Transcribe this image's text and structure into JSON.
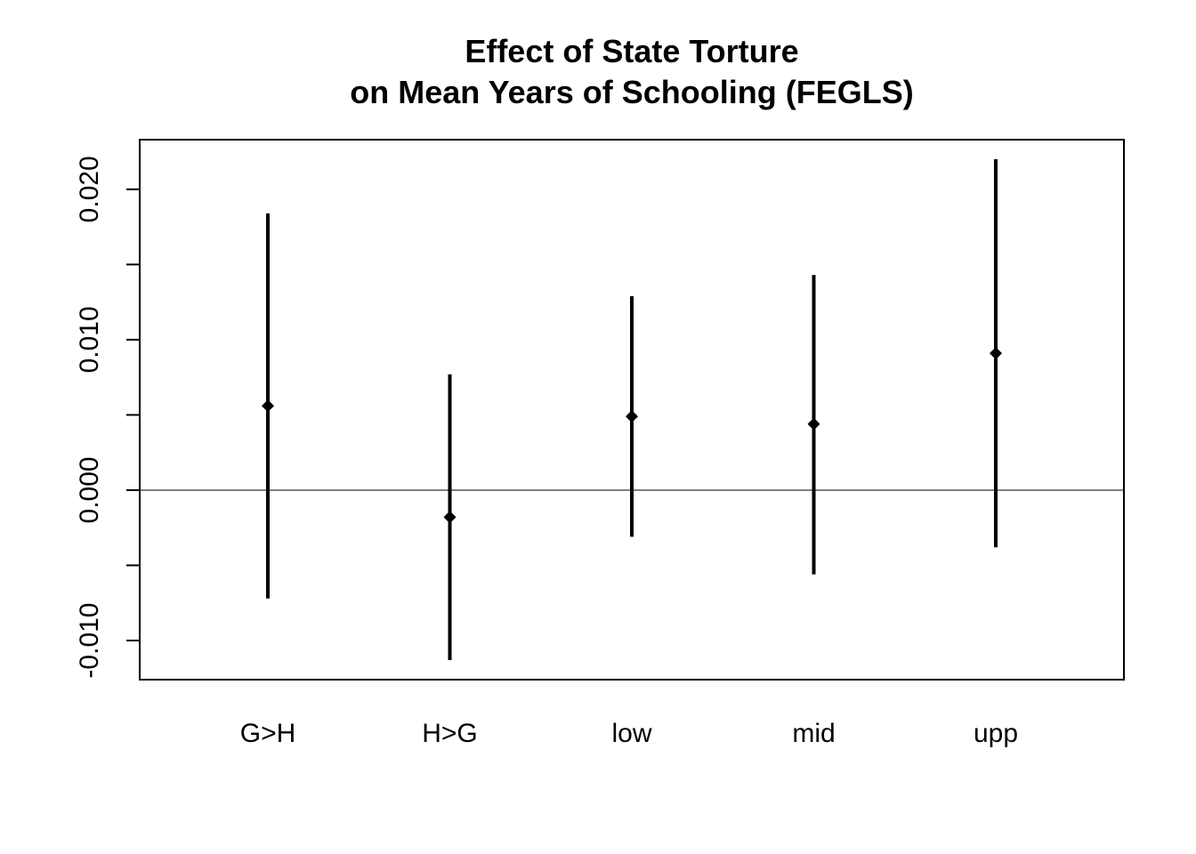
{
  "chart_data": {
    "type": "scatter",
    "title": "Effect of State Torture",
    "subtitle": "on Mean Years of Schooling (FEGLS)",
    "xlabel": "",
    "ylabel": "",
    "categories": [
      "G>H",
      "H>G",
      "low",
      "mid",
      "upp"
    ],
    "estimates": [
      0.0056,
      -0.0018,
      0.0049,
      0.0044,
      0.0091
    ],
    "lower": [
      -0.0072,
      -0.0113,
      -0.0031,
      -0.0056,
      -0.0038
    ],
    "upper": [
      0.0184,
      0.0077,
      0.0129,
      0.0143,
      0.022
    ],
    "ylim": [
      -0.0126,
      0.0233
    ],
    "yticks": [
      -0.01,
      -0.005,
      0.0,
      0.005,
      0.01,
      0.015,
      0.02
    ],
    "ytick_labels": [
      "-0.010",
      "",
      "0.000",
      "",
      "0.010",
      "",
      "0.020"
    ],
    "reference_line": 0,
    "grid": false,
    "legend": "none",
    "colors": {
      "points": "#000000",
      "intervals": "#000000",
      "axes": "#000000",
      "background": "#ffffff"
    }
  }
}
